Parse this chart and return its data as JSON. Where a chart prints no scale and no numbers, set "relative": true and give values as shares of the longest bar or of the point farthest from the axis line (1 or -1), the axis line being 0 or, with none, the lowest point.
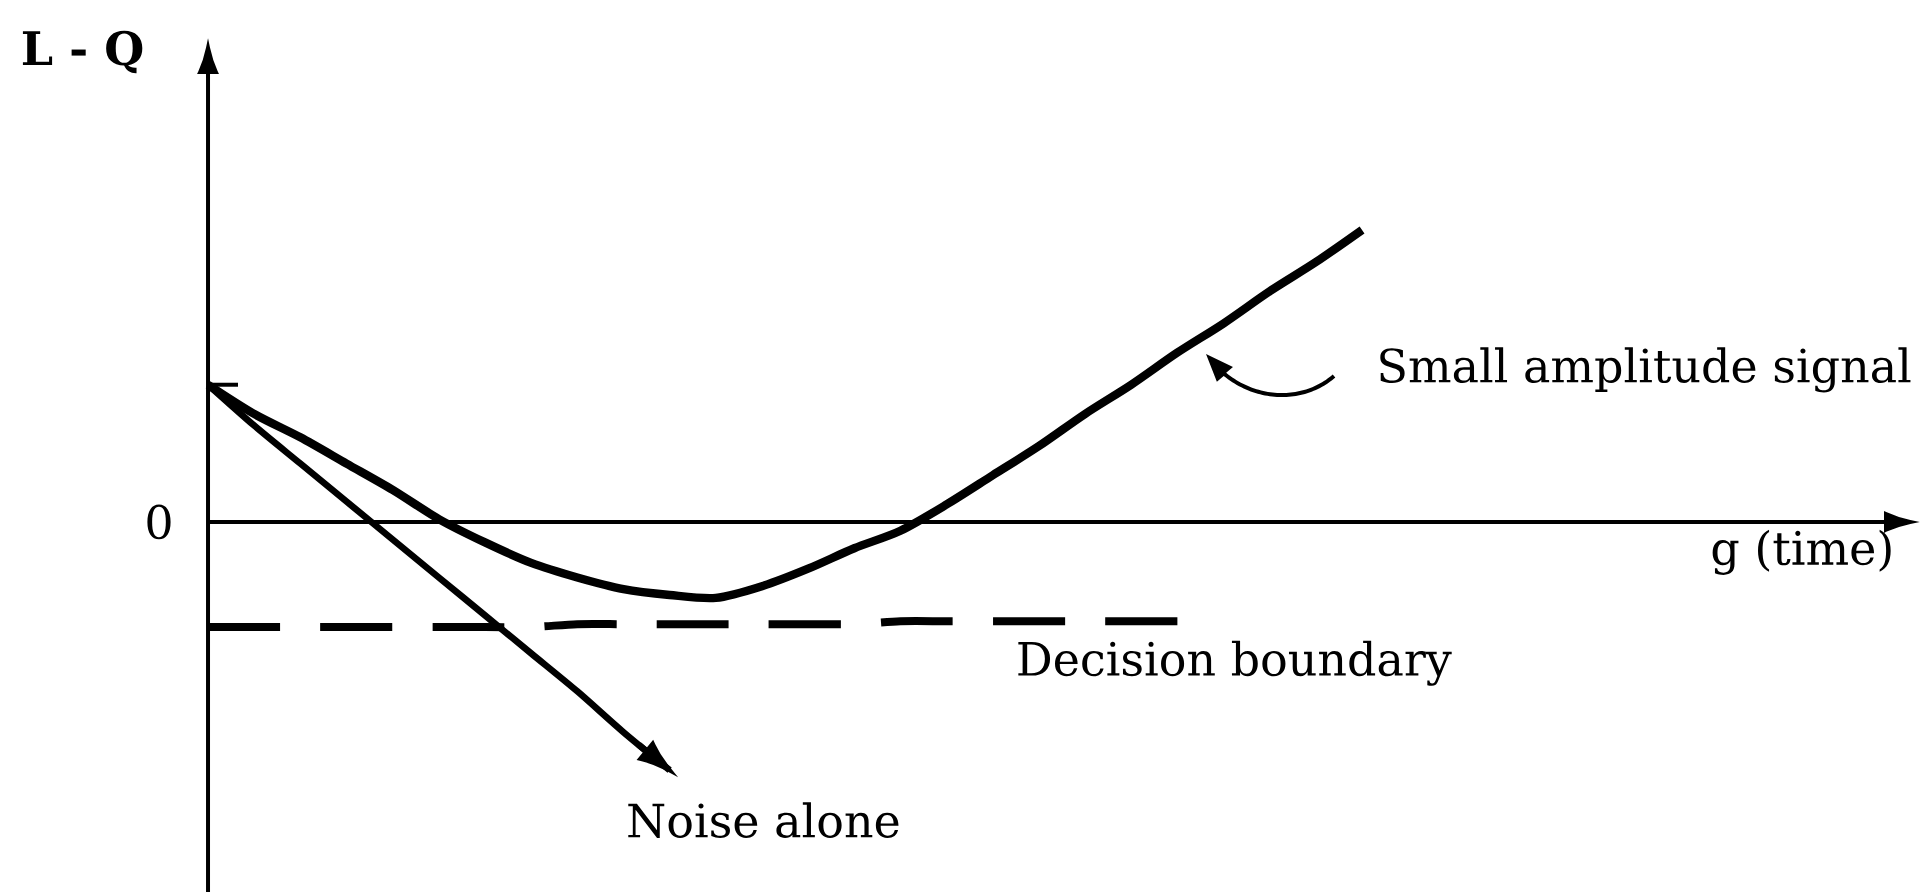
{
  "chart_data": {
    "type": "line",
    "relative": true,
    "ylabel": "L - Q",
    "marker": "none",
    "annotations": [
      "0",
      "g (time)"
    ],
    "categories": [
      null,
      null,
      null,
      null,
      null,
      null,
      null,
      null,
      null,
      null,
      null,
      null,
      null,
      null,
      null,
      null,
      null,
      null,
      null,
      null,
      null,
      null,
      null,
      null,
      null,
      null
    ],
    "series": [
      {
        "name": "Small amplitude signal",
        "color": "#000000",
        "values": [
          0.47,
          0.37,
          0.29,
          0.2,
          0.11,
          0.01,
          -0.07,
          -0.14,
          -0.19,
          -0.23,
          -0.25,
          -0.26,
          -0.22,
          -0.16,
          -0.09,
          -0.03,
          0.06,
          0.16,
          0.26,
          0.37,
          0.47,
          0.58,
          0.68,
          0.79,
          0.89,
          1.0
        ]
      },
      {
        "name": "Noise alone",
        "color": "#000000",
        "values": [
          0.47,
          0.33,
          0.2,
          0.07,
          -0.06,
          -0.19,
          -0.32,
          -0.45,
          -0.58,
          -0.72,
          -0.85,
          null,
          null,
          null,
          null,
          null,
          null,
          null,
          null,
          null,
          null,
          null,
          null,
          null,
          null,
          null
        ]
      },
      {
        "name": "Decision boundary",
        "color": "#000000",
        "line_style": "dashed",
        "values": [
          -0.36,
          -0.36,
          -0.36,
          -0.36,
          -0.36,
          -0.36,
          -0.36,
          -0.36,
          -0.35,
          -0.35,
          -0.35,
          -0.35,
          -0.35,
          -0.35,
          -0.35,
          -0.34,
          -0.34,
          -0.34,
          -0.34,
          -0.34,
          -0.34,
          -0.34,
          null,
          null,
          null,
          null
        ]
      }
    ]
  }
}
